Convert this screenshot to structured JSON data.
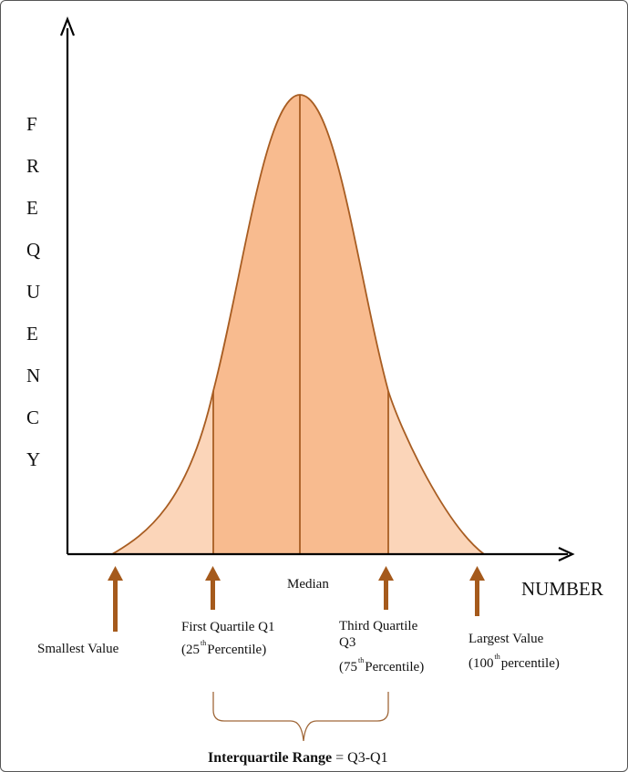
{
  "colors": {
    "fill_iqr": "#f8bb8f",
    "fill_tail": "#fbd5b9",
    "stroke": "#a85d22",
    "arrow": "#a55a1c",
    "axis": "#000000",
    "brace": "#a0683a"
  },
  "y_axis_letters": [
    "F",
    "R",
    "E",
    "Q",
    "U",
    "E",
    "N",
    "C",
    "Y"
  ],
  "x_axis_label": "NUMBER",
  "labels": {
    "median": "Median",
    "smallest": "Smallest Value",
    "q1_line1": "First Quartile Q1",
    "q1_open": "(25",
    "q1_sup": "th",
    "q1_close": "Percentile)",
    "q3_line1": "Third Quartile",
    "q3_line2": "Q3",
    "q3_open": "(75",
    "q3_sup": "th",
    "q3_close": "Percentile)",
    "largest_line1": "Largest Value",
    "largest_open": "(100",
    "largest_sup": "th",
    "largest_close": "percentile)",
    "iqr_bold": "Interquartile Range",
    "iqr_rest": "= Q3-Q1"
  }
}
